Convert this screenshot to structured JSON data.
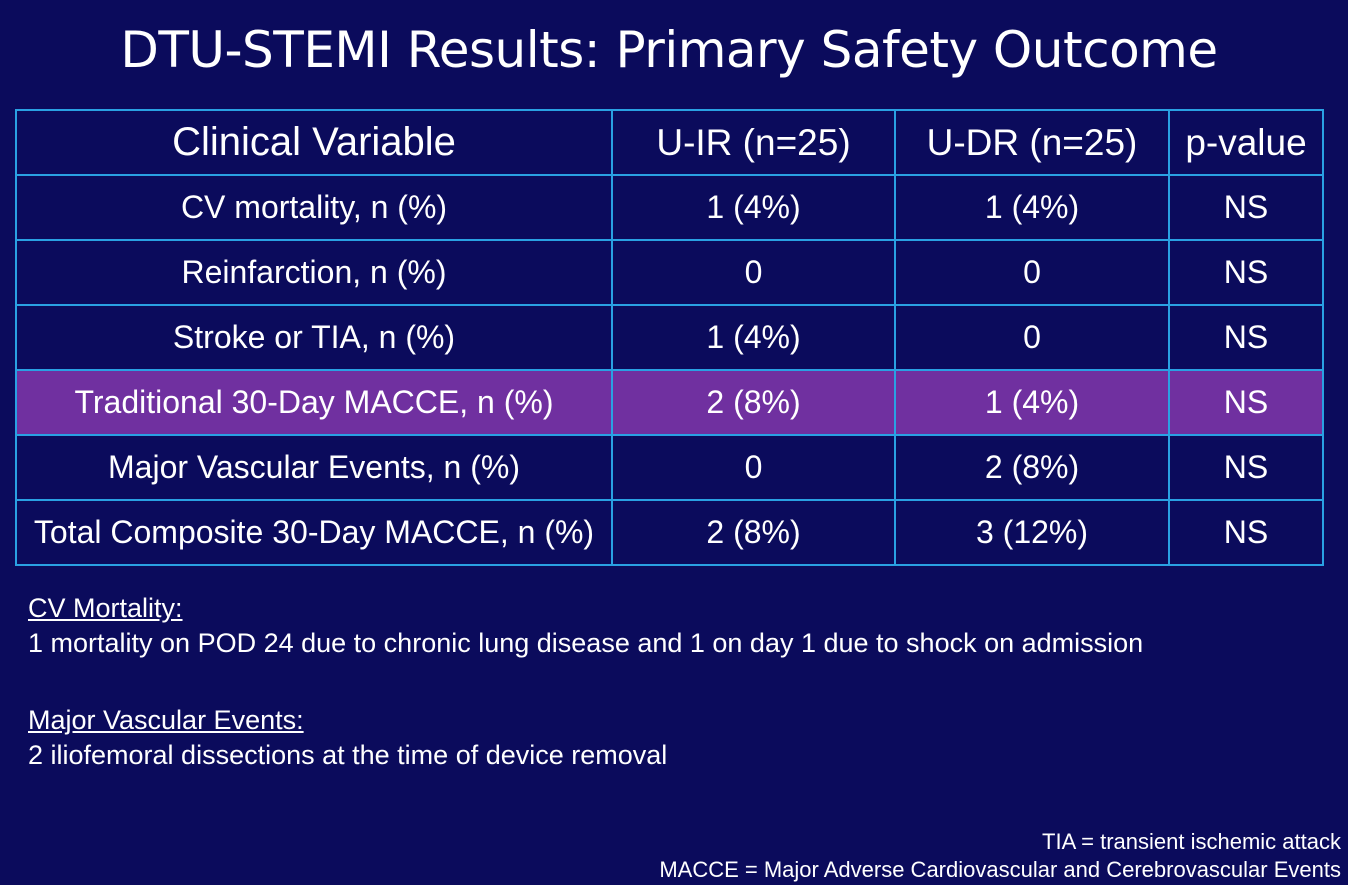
{
  "title": "DTU-STEMI Results: Primary Safety Outcome",
  "table": {
    "headers": [
      "Clinical Variable",
      "U-IR (n=25)",
      "U-DR (n=25)",
      "p-value"
    ],
    "rows": [
      {
        "variable": "CV mortality, n (%)",
        "uir": "1 (4%)",
        "udr": "1 (4%)",
        "p": "NS"
      },
      {
        "variable": "Reinfarction, n (%)",
        "uir": "0",
        "udr": "0",
        "p": "NS"
      },
      {
        "variable": "Stroke or TIA, n (%)",
        "uir": "1 (4%)",
        "udr": "0",
        "p": "NS"
      },
      {
        "variable": "Traditional 30-Day MACCE, n (%)",
        "uir": "2 (8%)",
        "udr": "1 (4%)",
        "p": "NS"
      },
      {
        "variable": "Major Vascular Events, n (%)",
        "uir": "0",
        "udr": "2 (8%)",
        "p": "NS"
      },
      {
        "variable": "Total Composite 30-Day MACCE, n (%)",
        "uir": "2 (8%)",
        "udr": "3 (12%)",
        "p": "NS"
      }
    ],
    "highlight_color": "#7030a0",
    "border_color": "#2aa1e3"
  },
  "notes": {
    "cv_heading": "CV Mortality:",
    "cv_text": "1 mortality on POD 24 due to chronic lung disease and 1 on day 1 due to shock on admission",
    "vascular_heading": "Major Vascular Events:",
    "vascular_text": "2 iliofemoral dissections at the time of device removal"
  },
  "footnotes": {
    "tia": "TIA = transient ischemic attack",
    "macce": "MACCE = Major Adverse Cardiovascular and Cerebrovascular Events"
  },
  "background_color": "#0b0b5c"
}
